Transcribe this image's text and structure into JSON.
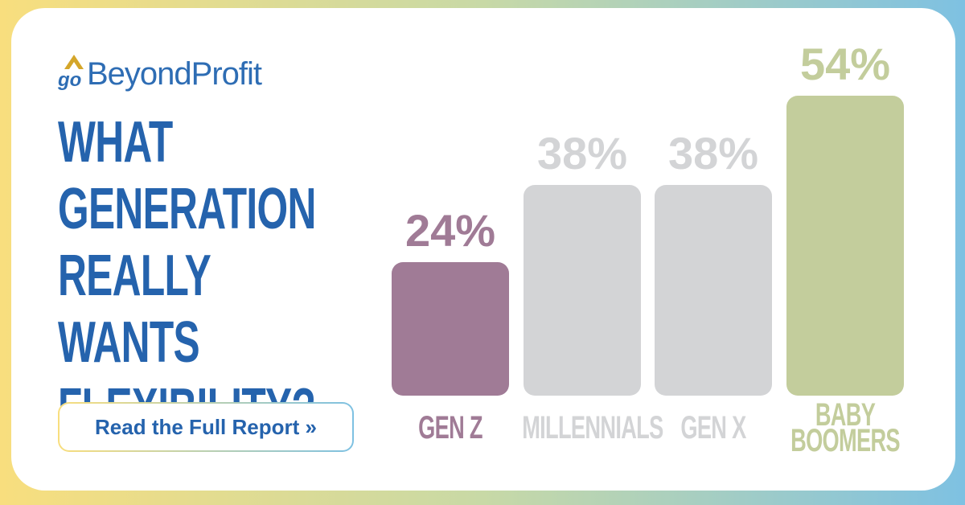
{
  "logo": {
    "prefix": "go",
    "name": "BeyondProfit"
  },
  "button": "Read the Full Report »",
  "chart_data": {
    "type": "bar",
    "title": "WHAT GENERATION REALLY WANTS FLEXIBILITY?",
    "categories": [
      "GEN Z",
      "MILLENNIALS",
      "GEN X",
      "BABY BOOMERS"
    ],
    "values": [
      24,
      38,
      38,
      54
    ],
    "value_labels": [
      "24%",
      "38%",
      "38%",
      "54%"
    ],
    "colors": [
      "#a07b96",
      "#d3d4d6",
      "#d3d4d6",
      "#c3cd9c"
    ]
  }
}
